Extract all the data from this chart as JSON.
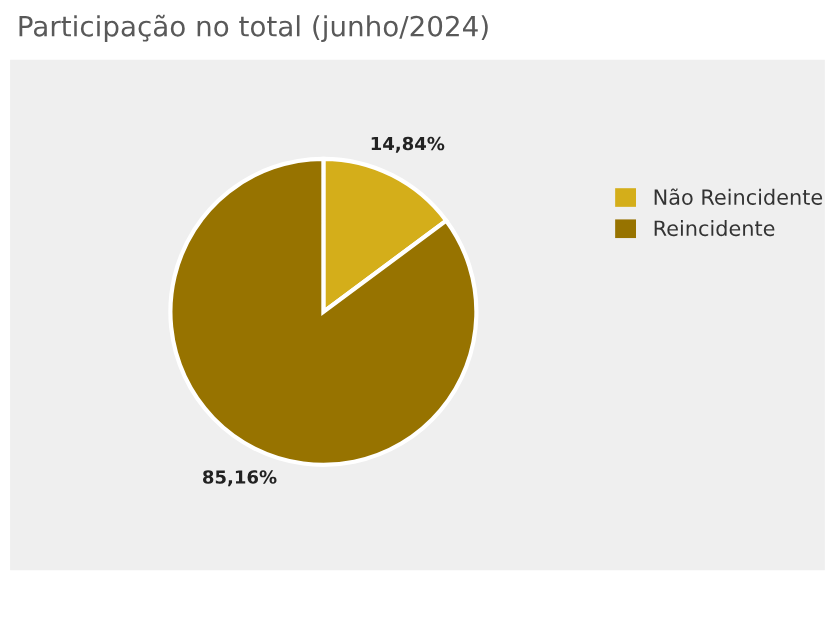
{
  "chart_data": {
    "type": "pie",
    "title": "Participação no total (junho/2024)",
    "categories": [
      "Não Reincidente",
      "Reincidente"
    ],
    "values": [
      14.84,
      85.16
    ],
    "colors": [
      "#d4ae1a",
      "#977300"
    ],
    "value_labels": [
      "14,84%",
      "85,16%"
    ],
    "legend": "right"
  }
}
